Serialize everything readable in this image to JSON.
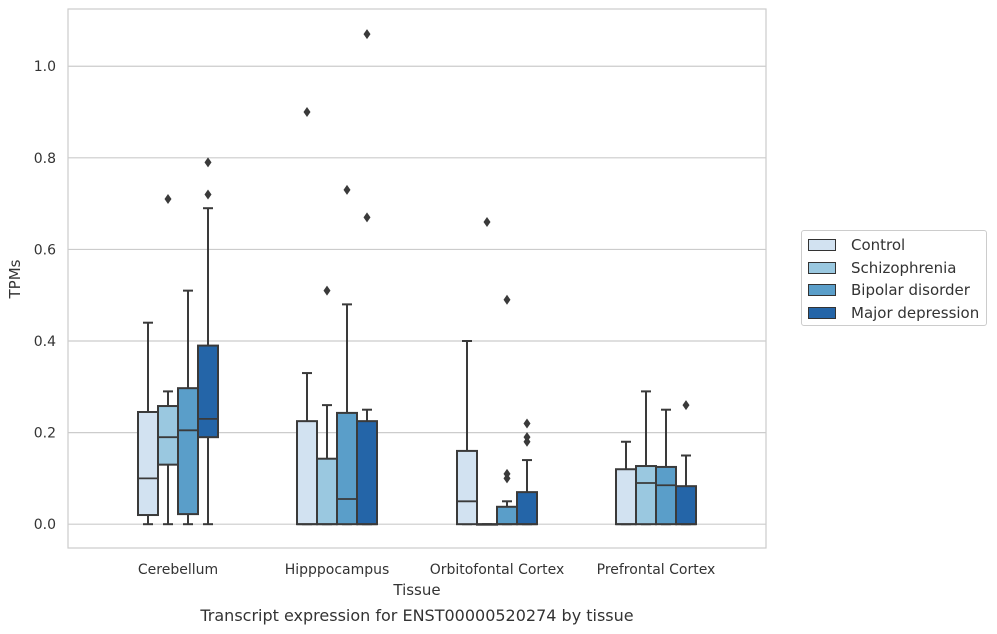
{
  "chart_data": {
    "type": "boxplot",
    "xlabel": "Tissue",
    "ylabel": "TPMs",
    "ylim": [
      -0.052,
      1.125
    ],
    "yticks": [
      0.0,
      0.2,
      0.4,
      0.6,
      0.8,
      1.0
    ],
    "ytick_labels": [
      "0.0",
      "0.2",
      "0.4",
      "0.6",
      "0.8",
      "1.0"
    ],
    "grid": "horizontal",
    "legend_position": "right",
    "categories": [
      "Cerebellum",
      "Hipppocampus",
      "Orbitofontal Cortex",
      "Prefrontal Cortex"
    ],
    "series": [
      {
        "name": "Control",
        "color": "#d2e2f1",
        "boxes": [
          {
            "q1": 0.02,
            "median": 0.1,
            "q3": 0.245,
            "whisker_low": 0.0,
            "whisker_high": 0.44,
            "outliers": []
          },
          {
            "q1": 0.0,
            "median": 0.0,
            "q3": 0.225,
            "whisker_low": 0.0,
            "whisker_high": 0.33,
            "outliers": [
              0.9
            ]
          },
          {
            "q1": 0.0,
            "median": 0.05,
            "q3": 0.16,
            "whisker_low": 0.0,
            "whisker_high": 0.4,
            "outliers": []
          },
          {
            "q1": 0.0,
            "median": 0.0,
            "q3": 0.12,
            "whisker_low": 0.0,
            "whisker_high": 0.18,
            "outliers": []
          }
        ]
      },
      {
        "name": "Schizophrenia",
        "color": "#9ac8e0",
        "boxes": [
          {
            "q1": 0.13,
            "median": 0.19,
            "q3": 0.258,
            "whisker_low": 0.0,
            "whisker_high": 0.29,
            "outliers": [
              0.71
            ]
          },
          {
            "q1": 0.0,
            "median": 0.0,
            "q3": 0.143,
            "whisker_low": 0.0,
            "whisker_high": 0.26,
            "outliers": [
              0.51
            ]
          },
          {
            "q1": 0.0,
            "median": 0.0,
            "q3": 0.0,
            "whisker_low": 0.0,
            "whisker_high": 0.0,
            "outliers": [
              0.66
            ]
          },
          {
            "q1": 0.0,
            "median": 0.09,
            "q3": 0.127,
            "whisker_low": 0.0,
            "whisker_high": 0.29,
            "outliers": []
          }
        ]
      },
      {
        "name": "Bipolar disorder",
        "color": "#5a9ec9",
        "boxes": [
          {
            "q1": 0.022,
            "median": 0.205,
            "q3": 0.297,
            "whisker_low": 0.0,
            "whisker_high": 0.51,
            "outliers": []
          },
          {
            "q1": 0.0,
            "median": 0.055,
            "q3": 0.243,
            "whisker_low": 0.0,
            "whisker_high": 0.48,
            "outliers": [
              0.73
            ]
          },
          {
            "q1": 0.0,
            "median": 0.0,
            "q3": 0.038,
            "whisker_low": 0.0,
            "whisker_high": 0.05,
            "outliers": [
              0.49,
              0.11,
              0.1
            ]
          },
          {
            "q1": 0.0,
            "median": 0.085,
            "q3": 0.125,
            "whisker_low": 0.0,
            "whisker_high": 0.25,
            "outliers": []
          }
        ]
      },
      {
        "name": "Major depression",
        "color": "#2465a8",
        "boxes": [
          {
            "q1": 0.19,
            "median": 0.23,
            "q3": 0.39,
            "whisker_low": 0.0,
            "whisker_high": 0.69,
            "outliers": [
              0.79,
              0.72
            ]
          },
          {
            "q1": 0.0,
            "median": 0.0,
            "q3": 0.225,
            "whisker_low": 0.0,
            "whisker_high": 0.25,
            "outliers": [
              1.07,
              0.67
            ]
          },
          {
            "q1": 0.0,
            "median": 0.0,
            "q3": 0.07,
            "whisker_low": 0.0,
            "whisker_high": 0.14,
            "outliers": [
              0.22,
              0.19,
              0.18
            ]
          },
          {
            "q1": 0.0,
            "median": 0.0,
            "q3": 0.083,
            "whisker_low": 0.0,
            "whisker_high": 0.15,
            "outliers": [
              0.26
            ]
          }
        ]
      }
    ],
    "caption": "Transcript expression for ENST00000520274 by tissue"
  }
}
